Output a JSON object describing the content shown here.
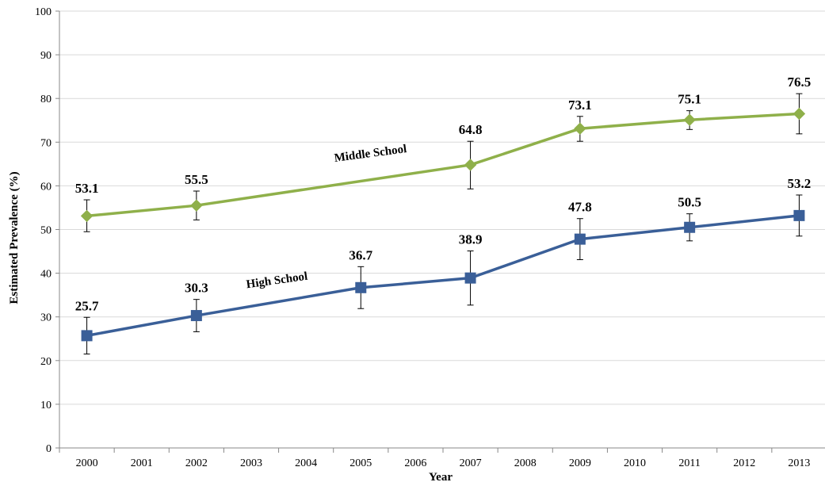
{
  "chart_data": {
    "type": "line",
    "title": "",
    "xlabel": "Year",
    "ylabel": "Estimated Prevalence (%)",
    "ylim": [
      0,
      100
    ],
    "yticks": [
      "0",
      "10",
      "20",
      "30",
      "40",
      "50",
      "60",
      "70",
      "80",
      "90",
      "100"
    ],
    "categories": [
      "2000",
      "2001",
      "2002",
      "2003",
      "2004",
      "2005",
      "2006",
      "2007",
      "2008",
      "2009",
      "2010",
      "2011",
      "2012",
      "2013"
    ],
    "grid": true,
    "legend": "none",
    "series": [
      {
        "name": "Middle School",
        "color": "#8fb04a",
        "marker": "diamond",
        "points": [
          {
            "x": "2000",
            "y": 53.1,
            "label": "53.1",
            "err_low": 49.5,
            "err_high": 56.8
          },
          {
            "x": "2002",
            "y": 55.5,
            "label": "55.5",
            "err_low": 52.2,
            "err_high": 58.8
          },
          {
            "x": "2007",
            "y": 64.8,
            "label": "64.8",
            "err_low": 59.3,
            "err_high": 70.2
          },
          {
            "x": "2009",
            "y": 73.1,
            "label": "73.1",
            "err_low": 70.2,
            "err_high": 75.9
          },
          {
            "x": "2011",
            "y": 75.1,
            "label": "75.1",
            "err_low": 72.9,
            "err_high": 77.2
          },
          {
            "x": "2013",
            "y": 76.5,
            "label": "76.5",
            "err_low": 71.9,
            "err_high": 81.1
          }
        ]
      },
      {
        "name": "High School",
        "color": "#3a5f98",
        "marker": "square",
        "points": [
          {
            "x": "2000",
            "y": 25.7,
            "label": "25.7",
            "err_low": 21.5,
            "err_high": 29.9
          },
          {
            "x": "2002",
            "y": 30.3,
            "label": "30.3",
            "err_low": 26.6,
            "err_high": 34.0
          },
          {
            "x": "2005",
            "y": 36.7,
            "label": "36.7",
            "err_low": 31.9,
            "err_high": 41.5
          },
          {
            "x": "2007",
            "y": 38.9,
            "label": "38.9",
            "err_low": 32.7,
            "err_high": 45.1
          },
          {
            "x": "2009",
            "y": 47.8,
            "label": "47.8",
            "err_low": 43.1,
            "err_high": 52.5
          },
          {
            "x": "2011",
            "y": 50.5,
            "label": "50.5",
            "err_low": 47.4,
            "err_high": 53.6
          },
          {
            "x": "2013",
            "y": 53.2,
            "label": "53.2",
            "err_low": 48.5,
            "err_high": 57.9
          }
        ]
      }
    ]
  }
}
